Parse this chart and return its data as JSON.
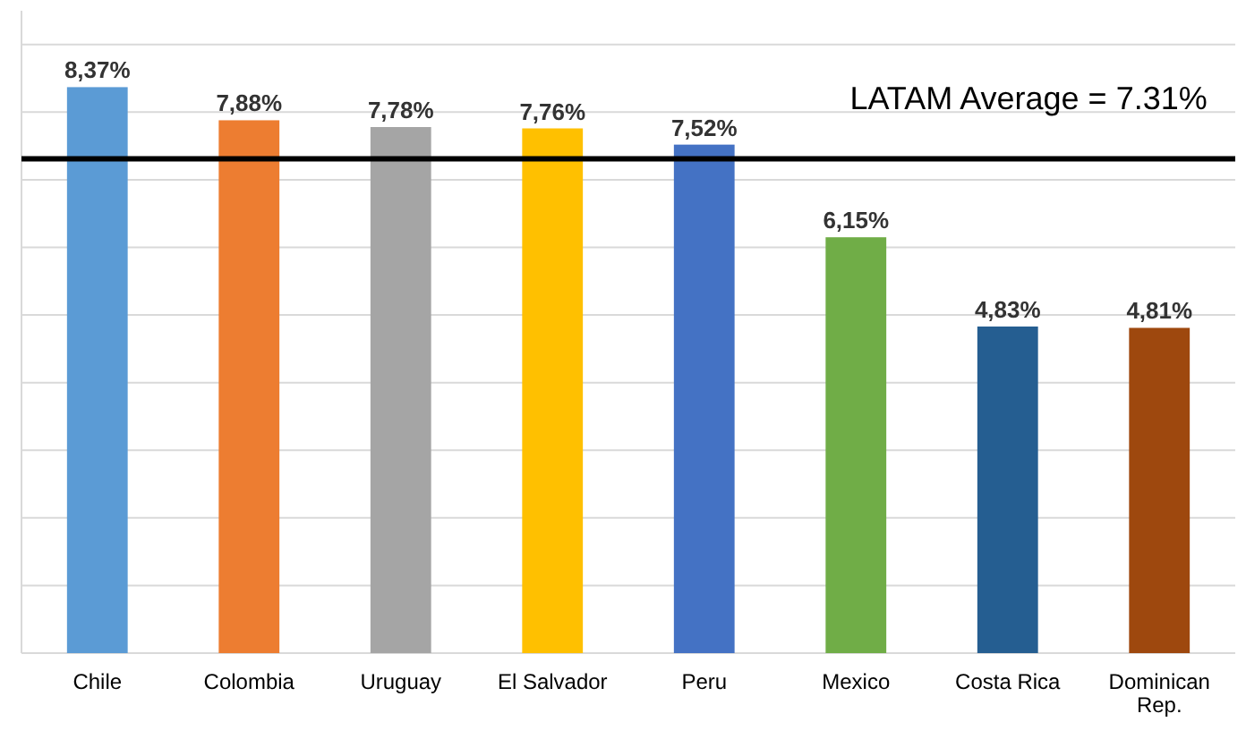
{
  "chart_data": {
    "type": "bar",
    "categories": [
      "Chile",
      "Colombia",
      "Uruguay",
      "El Salvador",
      "Peru",
      "Mexico",
      "Costa Rica",
      "Dominican Rep."
    ],
    "values": [
      8.37,
      7.88,
      7.78,
      7.76,
      7.52,
      6.15,
      4.83,
      4.81
    ],
    "value_labels": [
      "8,37%",
      "7,88%",
      "7,78%",
      "7,76%",
      "7,52%",
      "6,15%",
      "4,83%",
      "4,81%"
    ],
    "colors": [
      "#5b9bd5",
      "#ed7d31",
      "#a5a5a5",
      "#ffc000",
      "#4472c4",
      "#70ad47",
      "#255e91",
      "#9e480e"
    ],
    "ylim": [
      0,
      9.5
    ],
    "yticks": [
      {
        "value": 0,
        "label": null
      },
      {
        "value": 1,
        "label": null
      },
      {
        "value": 2,
        "label": null
      },
      {
        "value": 3,
        "label": null
      },
      {
        "value": 4,
        "label": null
      },
      {
        "value": 5,
        "label": null
      },
      {
        "value": 6,
        "label": null
      },
      {
        "value": 7,
        "label": null
      },
      {
        "value": 8,
        "label": null
      },
      {
        "value": 9,
        "label": null
      }
    ],
    "grid": "y",
    "tick_labels": "x",
    "ref_lines": [
      {
        "axis": "y",
        "value": 7.31,
        "label": "LATAM Average = 7.31%",
        "color": "#000000"
      }
    ]
  }
}
